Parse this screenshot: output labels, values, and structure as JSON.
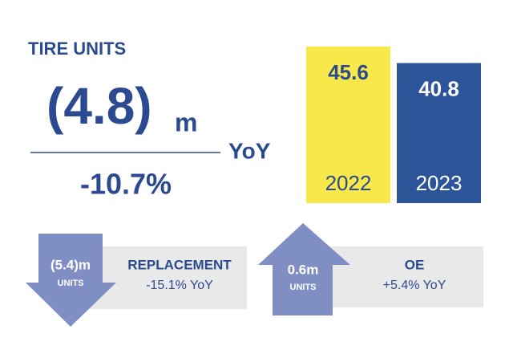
{
  "headline": {
    "title": "TIRE UNITS",
    "change_value": "(4.8)",
    "change_unit": "m",
    "comparison": "YoY",
    "change_percent": "-10.7%"
  },
  "chart_data": {
    "type": "bar",
    "categories": [
      "2022",
      "2023"
    ],
    "values": [
      45.6,
      40.8
    ],
    "colors": [
      "#f9e84a",
      "#2b5499"
    ]
  },
  "segments": [
    {
      "value": "(5.4)m",
      "unit": "UNITS",
      "name": "REPLACEMENT",
      "change": "-15.1% YoY"
    },
    {
      "value": "0.6m",
      "unit": "UNITS",
      "name": "OE",
      "change": "+5.4% YoY"
    }
  ]
}
